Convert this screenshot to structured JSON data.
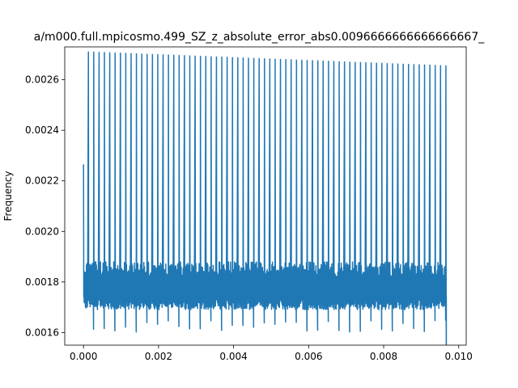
{
  "chart_data": {
    "type": "line",
    "title": "a/m000.full.mpicosmo.499_SZ_z_absolute_error_abs0.0096666666666666667_",
    "xlabel": "",
    "ylabel": "Frequency",
    "xlim": [
      -0.0005,
      0.0102
    ],
    "ylim": [
      0.00155,
      0.00273
    ],
    "xticks": [
      0.0,
      0.002,
      0.004,
      0.006,
      0.008,
      0.01
    ],
    "xtick_labels": [
      "0.000",
      "0.002",
      "0.004",
      "0.006",
      "0.008",
      "0.010"
    ],
    "yticks": [
      0.0016,
      0.0018,
      0.002,
      0.0022,
      0.0024,
      0.0026
    ],
    "ytick_labels": [
      "0.0016",
      "0.0018",
      "0.0020",
      "0.0022",
      "0.0024",
      "0.0026"
    ],
    "grid": false,
    "legend": "none",
    "series_color": "#1f77b4",
    "series": [
      {
        "x_start": 0.0,
        "x_end": 0.00967,
        "spike_count": 68,
        "spike_peaks_start": 0.00271,
        "spike_peaks_end": 0.002655,
        "first_peak": 0.002265,
        "baseline_upper": 0.00188,
        "baseline_lower": 0.00169,
        "dip_min": 0.0016,
        "dip_count": 30
      }
    ]
  }
}
